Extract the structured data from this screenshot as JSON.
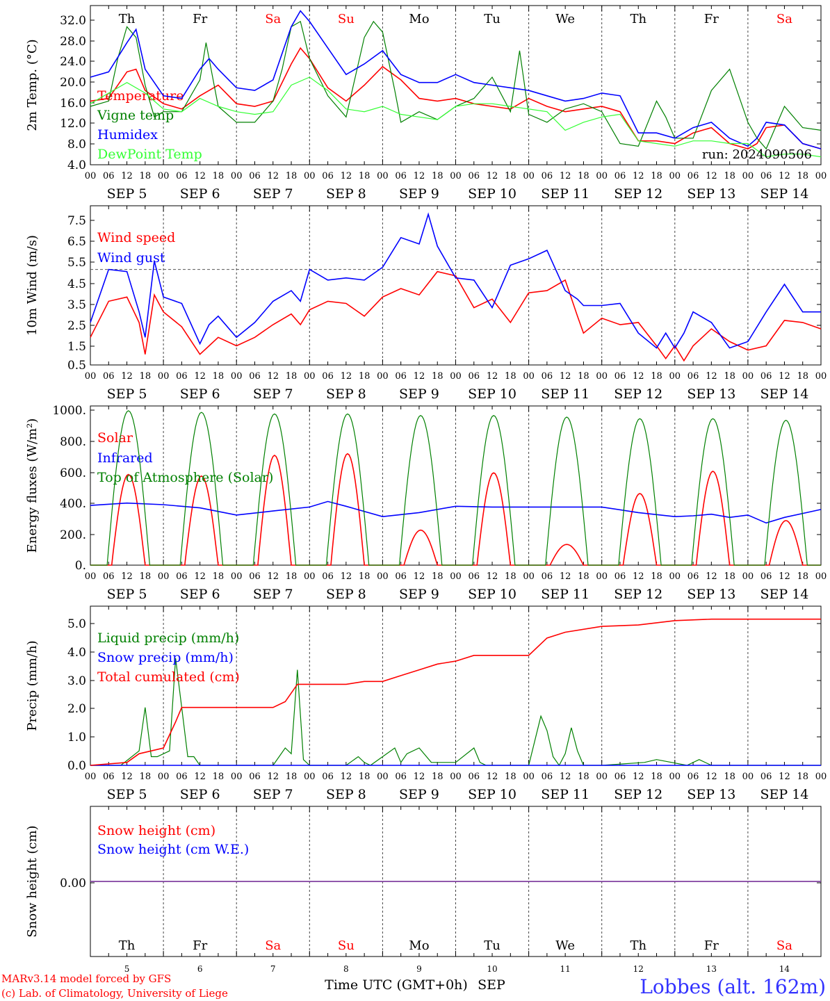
{
  "colors": {
    "red": "#ff0000",
    "green": "#008000",
    "blue": "#0000ff",
    "lightgreen": "#33ff33",
    "purple": "#8040a0",
    "footer_blue": "#3333ff"
  },
  "days": {
    "abbr": [
      "Th",
      "Fr",
      "Sa",
      "Su",
      "Mo",
      "Tu",
      "We",
      "Th",
      "Fr",
      "Sa"
    ],
    "weekend": [
      false,
      false,
      true,
      true,
      false,
      false,
      false,
      false,
      false,
      true
    ],
    "dates": [
      "SEP  5",
      "SEP  6",
      "SEP  7",
      "SEP  8",
      "SEP  9",
      "SEP 10",
      "SEP 11",
      "SEP 12",
      "SEP 13",
      "SEP 14"
    ],
    "numbers": [
      "5",
      "6",
      "7",
      "8",
      "9",
      "10",
      "11",
      "12",
      "13",
      "14"
    ],
    "hour_ticks": [
      "00",
      "06",
      "12",
      "18"
    ],
    "final_tick": "00"
  },
  "chart_data": [
    {
      "id": "temp",
      "type": "line",
      "ylabel": "2m Temp. (°C)",
      "yticks": [
        "32.0",
        "28.0",
        "24.0",
        "20.0",
        "16.0",
        "12.0",
        "8.0",
        "4.0"
      ],
      "ylim": [
        4,
        34
      ],
      "x_unit": "hours since SEP 5 00 UTC",
      "xlim": [
        0,
        240
      ],
      "annotation": "run: 2024090506",
      "series": [
        {
          "name": "Temperature",
          "color": "red",
          "x": [
            0,
            6,
            12,
            15,
            18,
            24,
            30,
            36,
            42,
            48,
            54,
            60,
            66,
            69,
            72,
            78,
            84,
            90,
            96,
            102,
            108,
            114,
            120,
            126,
            132,
            138,
            144,
            150,
            156,
            162,
            168,
            174,
            180,
            186,
            192,
            198,
            204,
            210,
            216,
            219,
            222,
            228,
            234,
            240
          ],
          "y": [
            16,
            16.5,
            21.5,
            22,
            18,
            15.5,
            14.5,
            17,
            19,
            15.5,
            15,
            16,
            23,
            26,
            24,
            18.5,
            16,
            19,
            22.5,
            20,
            16.5,
            16,
            16.5,
            15.5,
            15,
            14.5,
            16.5,
            15,
            14,
            14.5,
            15,
            14,
            8.5,
            8.5,
            8,
            10,
            11,
            8,
            7,
            8,
            11,
            11.5,
            8,
            7
          ]
        },
        {
          "name": "Vigne temp",
          "color": "green",
          "x": [
            0,
            6,
            9,
            12,
            15,
            18,
            21,
            24,
            30,
            36,
            38,
            42,
            48,
            54,
            60,
            63,
            66,
            69,
            72,
            78,
            84,
            90,
            93,
            96,
            100,
            102,
            108,
            114,
            120,
            126,
            132,
            138,
            141,
            144,
            150,
            156,
            162,
            168,
            174,
            180,
            186,
            189,
            192,
            198,
            204,
            210,
            216,
            219,
            222,
            228,
            234,
            240
          ],
          "y": [
            15,
            16,
            24,
            30,
            28,
            19,
            13,
            14,
            14,
            20,
            27,
            15,
            12,
            12,
            16,
            22,
            30,
            31,
            24,
            17,
            13,
            28,
            31,
            29,
            18,
            12,
            14,
            12.5,
            15,
            16.5,
            20.5,
            14,
            25.5,
            13.5,
            12,
            14.5,
            15.5,
            14,
            8,
            7.5,
            16,
            13,
            9,
            9,
            18,
            22,
            12,
            9,
            7,
            15,
            11,
            10.5
          ]
        },
        {
          "name": "Humidex",
          "color": "blue",
          "x": [
            0,
            6,
            12,
            15,
            18,
            24,
            30,
            36,
            39,
            42,
            48,
            54,
            60,
            66,
            69,
            72,
            78,
            84,
            90,
            96,
            102,
            108,
            114,
            120,
            126,
            132,
            138,
            144,
            150,
            156,
            162,
            168,
            174,
            180,
            186,
            192,
            198,
            204,
            210,
            216,
            219,
            222,
            228,
            234,
            240
          ],
          "y": [
            20.5,
            21.5,
            27,
            29.5,
            22,
            17,
            16.5,
            22,
            24,
            22,
            18.5,
            18,
            20,
            30,
            33,
            31,
            26,
            21,
            23,
            25.5,
            21,
            19.5,
            19.5,
            21,
            19.5,
            19,
            18.5,
            18,
            17,
            16,
            16.5,
            17.5,
            17,
            10,
            10,
            9,
            11,
            12,
            9,
            7.5,
            9,
            12,
            11.5,
            8,
            7
          ]
        },
        {
          "name": "DewPoint Temp",
          "color": "lightgreen",
          "x": [
            0,
            12,
            18,
            24,
            30,
            36,
            42,
            48,
            54,
            60,
            66,
            72,
            78,
            84,
            90,
            96,
            102,
            108,
            114,
            120,
            126,
            132,
            138,
            144,
            150,
            156,
            162,
            168,
            174,
            180,
            186,
            192,
            198,
            204,
            210,
            216,
            222,
            228,
            234,
            240
          ],
          "y": [
            15.5,
            19.5,
            17.5,
            14.5,
            14,
            16.5,
            15,
            14,
            13.5,
            14,
            19,
            20.5,
            18,
            14.5,
            14,
            15,
            13.5,
            13,
            12.5,
            15,
            15.5,
            15.5,
            15,
            14.5,
            14,
            10.5,
            12,
            13,
            13.5,
            8.5,
            8,
            7.5,
            8.5,
            8.5,
            8,
            8,
            5.5,
            6,
            6,
            5.5
          ]
        }
      ]
    },
    {
      "id": "wind",
      "type": "line",
      "ylabel": "10m Wind (m/s)",
      "yticks": [
        "7.5",
        "6.5",
        "5.5",
        "4.5",
        "3.5",
        "2.5",
        "1.5",
        "0.5"
      ],
      "ylim": [
        0.5,
        8
      ],
      "x_unit": "hours since SEP 5 00 UTC",
      "xlim": [
        0,
        240
      ],
      "reference_line": 5,
      "series": [
        {
          "name": "Wind speed",
          "color": "red",
          "x": [
            0,
            6,
            12,
            16,
            18,
            21,
            24,
            30,
            36,
            39,
            42,
            48,
            54,
            60,
            66,
            69,
            72,
            78,
            84,
            90,
            96,
            102,
            108,
            114,
            120,
            126,
            132,
            138,
            144,
            150,
            156,
            160,
            162,
            168,
            174,
            180,
            186,
            189,
            192,
            195,
            198,
            204,
            210,
            216,
            222,
            228,
            234,
            240
          ],
          "y": [
            1.8,
            3.5,
            3.7,
            2.5,
            1,
            3.8,
            3,
            2.3,
            1,
            1.4,
            1.8,
            1.4,
            1.8,
            2.4,
            2.9,
            2.4,
            3.1,
            3.5,
            3.4,
            2.8,
            3.7,
            4.1,
            3.8,
            4.9,
            4.7,
            3.2,
            3.6,
            2.5,
            3.9,
            4.0,
            4.5,
            2.8,
            2,
            2.7,
            2.4,
            2.5,
            1.4,
            0.8,
            1.4,
            0.7,
            1.4,
            2.2,
            1.6,
            1.2,
            1.4,
            2.6,
            2.5,
            2.2
          ]
        },
        {
          "name": "Wind gust",
          "color": "blue",
          "x": [
            0,
            6,
            12,
            16,
            18,
            21,
            24,
            30,
            36,
            39,
            42,
            48,
            54,
            60,
            66,
            69,
            72,
            78,
            84,
            90,
            96,
            102,
            108,
            111,
            114,
            120,
            126,
            132,
            138,
            144,
            150,
            156,
            160,
            162,
            168,
            174,
            180,
            186,
            189,
            192,
            195,
            198,
            204,
            210,
            216,
            222,
            228,
            234,
            240
          ],
          "y": [
            2.5,
            5,
            4.9,
            3,
            1.8,
            5.4,
            3.7,
            3.4,
            1.5,
            2.4,
            2.8,
            1.8,
            2.5,
            3.5,
            4,
            3.5,
            5,
            4.5,
            4.6,
            4.5,
            5.1,
            6.5,
            6.2,
            7.6,
            6.1,
            4.6,
            4.5,
            3.2,
            5.2,
            5.5,
            5.9,
            4.0,
            3.6,
            3.3,
            3.3,
            3.4,
            2,
            1.3,
            2.0,
            1.3,
            2.0,
            3.0,
            2.5,
            1.3,
            1.6,
            3.0,
            4.3,
            3.0,
            3.0
          ]
        }
      ]
    },
    {
      "id": "energy",
      "type": "line",
      "ylabel": "Energy fluxes (W/m²)",
      "yticks": [
        "1000.",
        "800.",
        "600.",
        "400.",
        "200.",
        "0."
      ],
      "ylim": [
        0,
        1000
      ],
      "x_unit": "hours since SEP 5 00 UTC",
      "xlim": [
        0,
        240
      ],
      "series": [
        {
          "name": "Solar",
          "color": "red",
          "peaks": [
            570,
            560,
            690,
            700,
            220,
            580,
            130,
            450,
            590,
            280
          ]
        },
        {
          "name": "Infrared",
          "color": "blue",
          "x": [
            0,
            12,
            24,
            36,
            48,
            60,
            72,
            78,
            84,
            96,
            108,
            120,
            132,
            144,
            156,
            168,
            180,
            192,
            198,
            204,
            210,
            216,
            222,
            228,
            240
          ],
          "y": [
            375,
            390,
            380,
            360,
            315,
            340,
            365,
            400,
            370,
            305,
            330,
            370,
            365,
            365,
            365,
            365,
            330,
            305,
            310,
            320,
            300,
            315,
            265,
            300,
            350
          ]
        },
        {
          "name": "Top of Atmosphere (Solar)",
          "color": "green",
          "peaks": [
            970,
            960,
            950,
            950,
            940,
            940,
            930,
            920,
            920,
            910
          ]
        }
      ]
    },
    {
      "id": "precip",
      "type": "line",
      "ylabel": "Precip (mm/h)",
      "yticks": [
        "5.0",
        "4.0",
        "3.0",
        "2.0",
        "1.0",
        "0.0"
      ],
      "ylim": [
        0,
        5.5
      ],
      "x_unit": "hours since SEP 5 00 UTC",
      "xlim": [
        0,
        240
      ],
      "series": [
        {
          "name": "Liquid precip (mm/h)",
          "color": "green",
          "x": [
            0,
            10,
            16,
            18,
            20,
            22,
            26,
            28,
            30,
            32,
            34,
            36,
            38,
            60,
            64,
            66,
            68,
            70,
            72,
            74,
            84,
            88,
            90,
            92,
            100,
            102,
            104,
            108,
            112,
            116,
            120,
            126,
            128,
            130,
            136,
            144,
            148,
            150,
            152,
            154,
            156,
            158,
            160,
            162,
            168,
            182,
            186,
            196,
            200,
            204,
            240
          ],
          "y": [
            0,
            0,
            0.5,
            2,
            0.3,
            0.3,
            0.5,
            3.7,
            2,
            0.3,
            0.3,
            0,
            0,
            0,
            0.6,
            0.4,
            3.3,
            0.2,
            0,
            0,
            0,
            0.3,
            0.1,
            0,
            0.6,
            0.1,
            0.4,
            0.6,
            0.1,
            0.1,
            0.1,
            0.6,
            0.1,
            0,
            0,
            0,
            1.7,
            1.2,
            0.3,
            0,
            0.4,
            1.3,
            0.5,
            0,
            0,
            0.1,
            0.2,
            0,
            0.2,
            0,
            0
          ]
        },
        {
          "name": "Snow precip (mm/h)",
          "color": "blue",
          "x": [
            0,
            240
          ],
          "y": [
            0,
            0
          ]
        },
        {
          "name": "Total cumulated (cm)",
          "color": "red",
          "x": [
            0,
            12,
            16,
            20,
            24,
            28,
            30,
            36,
            48,
            60,
            64,
            68,
            72,
            84,
            90,
            96,
            102,
            108,
            114,
            120,
            126,
            132,
            144,
            150,
            156,
            168,
            180,
            192,
            204,
            240
          ],
          "y": [
            0,
            0.1,
            0.4,
            0.5,
            0.6,
            1.5,
            2.0,
            2.0,
            2.0,
            2.0,
            2.2,
            2.8,
            2.8,
            2.8,
            2.9,
            2.9,
            3.1,
            3.3,
            3.5,
            3.6,
            3.8,
            3.8,
            3.8,
            4.4,
            4.6,
            4.8,
            4.85,
            5.0,
            5.05,
            5.05
          ]
        }
      ]
    },
    {
      "id": "snow",
      "type": "line",
      "ylabel": "Snow height (cm)",
      "yticks": [
        "0.00"
      ],
      "ylim": [
        -1,
        1
      ],
      "x_unit": "hours since SEP 5 00 UTC",
      "xlim": [
        0,
        240
      ],
      "series": [
        {
          "name": "Snow height (cm)",
          "color": "red",
          "x": [
            0,
            240
          ],
          "y": [
            0,
            0
          ]
        },
        {
          "name": "Snow height (cm W.E.)",
          "color": "blue",
          "x": [
            0,
            240
          ],
          "y": [
            0,
            0
          ]
        }
      ]
    }
  ],
  "footer": {
    "credit_line1": "MARv3.14 model forced by GFS",
    "credit_line2": "(c) Lab. of Climatology, University of Liege",
    "axis_title": "Time UTC (GMT+0h)",
    "month": "SEP",
    "location": "Lobbes (alt. 162m)"
  }
}
